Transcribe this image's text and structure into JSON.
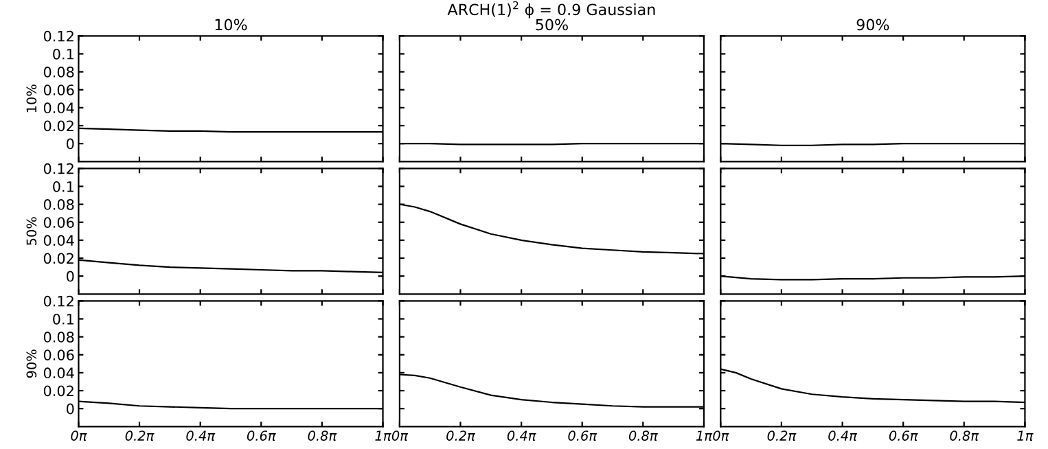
{
  "chart_data": [
    {
      "type": "line",
      "title": "10%",
      "ylabel": "10%",
      "x": [
        0,
        0.314,
        0.628,
        0.942,
        1.257,
        1.571,
        1.885,
        2.199,
        2.513,
        2.827,
        3.142
      ],
      "series": [
        {
          "color": "#000000",
          "values": [
            0.017,
            0.016,
            0.015,
            0.014,
            0.014,
            0.013,
            0.013,
            0.013,
            0.013,
            0.013,
            0.013
          ]
        }
      ],
      "xlim": [
        0,
        3.142
      ],
      "ylim": [
        -0.02,
        0.12
      ],
      "yticks": [
        0,
        0.02,
        0.04,
        0.06,
        0.08,
        0.1,
        0.12
      ],
      "tick_labels": "y",
      "grid": false,
      "legend": false
    },
    {
      "type": "line",
      "title": "50%",
      "annotations": [
        "ARCH(1)$^{2}$ ϕ = 0.9 Gaussian"
      ],
      "x": [
        0,
        0.314,
        0.628,
        0.942,
        1.257,
        1.571,
        1.885,
        2.199,
        2.513,
        2.827,
        3.142
      ],
      "series": [
        {
          "color": "#000000",
          "values": [
            0,
            0,
            -0.001,
            -0.001,
            -0.001,
            -0.001,
            0,
            0,
            0,
            0,
            0
          ]
        }
      ],
      "xlim": [
        0,
        3.142
      ],
      "ylim": [
        -0.02,
        0.12
      ],
      "tick_labels": false,
      "grid": false,
      "legend": false
    },
    {
      "type": "line",
      "title": "90%",
      "x": [
        0,
        0.314,
        0.628,
        0.942,
        1.257,
        1.571,
        1.885,
        2.199,
        2.513,
        2.827,
        3.142
      ],
      "series": [
        {
          "color": "#000000",
          "values": [
            0,
            -0.001,
            -0.002,
            -0.002,
            -0.001,
            -0.001,
            0,
            0,
            0,
            0,
            0
          ]
        }
      ],
      "xlim": [
        0,
        3.142
      ],
      "ylim": [
        -0.02,
        0.12
      ],
      "tick_labels": false,
      "grid": false,
      "legend": false
    },
    {
      "type": "line",
      "ylabel": "50%",
      "x": [
        0,
        0.314,
        0.628,
        0.942,
        1.257,
        1.571,
        1.885,
        2.199,
        2.513,
        2.827,
        3.142
      ],
      "series": [
        {
          "color": "#000000",
          "values": [
            0.018,
            0.015,
            0.012,
            0.01,
            0.009,
            0.008,
            0.007,
            0.006,
            0.006,
            0.005,
            0.004
          ]
        }
      ],
      "xlim": [
        0,
        3.142
      ],
      "ylim": [
        -0.02,
        0.12
      ],
      "yticks": [
        0,
        0.02,
        0.04,
        0.06,
        0.08,
        0.1,
        0.12
      ],
      "tick_labels": "y",
      "grid": false,
      "legend": false
    },
    {
      "type": "line",
      "x": [
        0,
        0.157,
        0.314,
        0.628,
        0.942,
        1.257,
        1.571,
        1.885,
        2.199,
        2.513,
        2.827,
        3.142
      ],
      "series": [
        {
          "color": "#000000",
          "values": [
            0.08,
            0.077,
            0.072,
            0.058,
            0.047,
            0.04,
            0.035,
            0.031,
            0.029,
            0.027,
            0.026,
            0.025
          ]
        }
      ],
      "xlim": [
        0,
        3.142
      ],
      "ylim": [
        -0.02,
        0.12
      ],
      "tick_labels": false,
      "grid": false,
      "legend": false
    },
    {
      "type": "line",
      "x": [
        0,
        0.314,
        0.628,
        0.942,
        1.257,
        1.571,
        1.885,
        2.199,
        2.513,
        2.827,
        3.142
      ],
      "series": [
        {
          "color": "#000000",
          "values": [
            0,
            -0.003,
            -0.004,
            -0.004,
            -0.003,
            -0.003,
            -0.002,
            -0.002,
            -0.001,
            -0.001,
            0
          ]
        }
      ],
      "xlim": [
        0,
        3.142
      ],
      "ylim": [
        -0.02,
        0.12
      ],
      "tick_labels": false,
      "grid": false,
      "legend": false
    },
    {
      "type": "line",
      "ylabel": "90%",
      "x": [
        0,
        0.314,
        0.628,
        0.942,
        1.257,
        1.571,
        1.885,
        2.199,
        2.513,
        2.827,
        3.142
      ],
      "series": [
        {
          "color": "#000000",
          "values": [
            0.008,
            0.006,
            0.003,
            0.002,
            0.001,
            0,
            0,
            0,
            0,
            0,
            0
          ]
        }
      ],
      "xlim": [
        0,
        3.142
      ],
      "ylim": [
        -0.02,
        0.12
      ],
      "yticks": [
        0,
        0.02,
        0.04,
        0.06,
        0.08,
        0.1,
        0.12
      ],
      "xticks": [
        {
          "value": 0,
          "label": "0π"
        },
        {
          "value": 0.628,
          "label": "0.2π"
        },
        {
          "value": 1.257,
          "label": "0.4π"
        },
        {
          "value": 1.885,
          "label": "0.6π"
        },
        {
          "value": 2.513,
          "label": "0.8π"
        },
        {
          "value": 3.142,
          "label": "1π"
        }
      ],
      "grid": false,
      "legend": false
    },
    {
      "type": "line",
      "x": [
        0,
        0.157,
        0.314,
        0.628,
        0.942,
        1.257,
        1.571,
        1.885,
        2.199,
        2.513,
        2.827,
        3.142
      ],
      "series": [
        {
          "color": "#000000",
          "values": [
            0.038,
            0.037,
            0.034,
            0.024,
            0.015,
            0.01,
            0.007,
            0.005,
            0.003,
            0.002,
            0.002,
            0.002
          ]
        }
      ],
      "xlim": [
        0,
        3.142
      ],
      "ylim": [
        -0.02,
        0.12
      ],
      "xticks": [
        {
          "value": 0,
          "label": "0π"
        },
        {
          "value": 0.628,
          "label": "0.2π"
        },
        {
          "value": 1.257,
          "label": "0.4π"
        },
        {
          "value": 1.885,
          "label": "0.6π"
        },
        {
          "value": 2.513,
          "label": "0.8π"
        },
        {
          "value": 3.142,
          "label": "1π"
        }
      ],
      "tick_labels": "x",
      "grid": false,
      "legend": false
    },
    {
      "type": "line",
      "x": [
        0,
        0.157,
        0.314,
        0.628,
        0.942,
        1.257,
        1.571,
        1.885,
        2.199,
        2.513,
        2.827,
        3.142
      ],
      "series": [
        {
          "color": "#000000",
          "values": [
            0.044,
            0.04,
            0.033,
            0.022,
            0.016,
            0.013,
            0.011,
            0.01,
            0.009,
            0.008,
            0.008,
            0.007
          ]
        }
      ],
      "xlim": [
        0,
        3.142
      ],
      "ylim": [
        -0.02,
        0.12
      ],
      "xticks": [
        {
          "value": 0,
          "label": "0π"
        },
        {
          "value": 0.628,
          "label": "0.2π"
        },
        {
          "value": 1.257,
          "label": "0.4π"
        },
        {
          "value": 1.885,
          "label": "0.6π"
        },
        {
          "value": 2.513,
          "label": "0.8π"
        },
        {
          "value": 3.142,
          "label": "1π"
        }
      ],
      "tick_labels": "x",
      "grid": false,
      "legend": false
    }
  ]
}
